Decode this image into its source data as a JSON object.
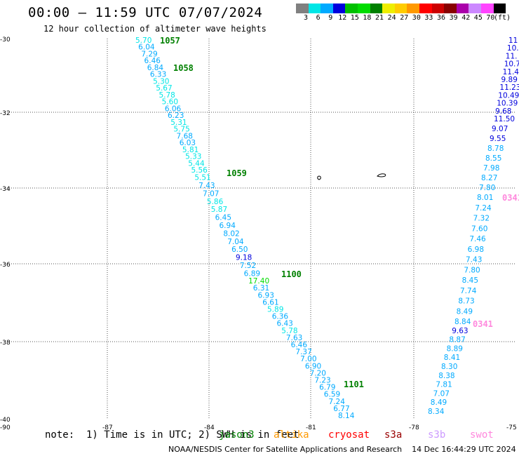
{
  "title": "00:00 – 11:59 UTC 07/07/2024",
  "subtitle": "12 hour collection of altimeter wave heights",
  "note": "note:  1) Time is in UTC; 2) SWH is in feet",
  "credit": "NOAA/NESDIS Center for Satellite Applications and Research    14 Dec 16:44:29 UTC 2024",
  "legend": {
    "unit": "(ft)",
    "bins": [
      {
        "label": "3",
        "color": "#808080"
      },
      {
        "label": "6",
        "color": "#00e6e6"
      },
      {
        "label": "9",
        "color": "#00aaff"
      },
      {
        "label": "12",
        "color": "#0000dd"
      },
      {
        "label": "15",
        "color": "#00c000"
      },
      {
        "label": "18",
        "color": "#00dc00"
      },
      {
        "label": "21",
        "color": "#008000"
      },
      {
        "label": "24",
        "color": "#eeee00"
      },
      {
        "label": "27",
        "color": "#ffcc00"
      },
      {
        "label": "30",
        "color": "#ff9900"
      },
      {
        "label": "33",
        "color": "#ff0000"
      },
      {
        "label": "36",
        "color": "#cc0000"
      },
      {
        "label": "39",
        "color": "#880000"
      },
      {
        "label": "42",
        "color": "#aa00aa"
      },
      {
        "label": "45",
        "color": "#cc88ff"
      },
      {
        "label": "70",
        "color": "#ff44ff"
      },
      {
        "label": "",
        "color": "#000000"
      }
    ]
  },
  "missions": [
    {
      "name": "jason3",
      "color": "#008000",
      "label": "jason3"
    },
    {
      "name": "altika",
      "color": "#ff9900",
      "label": "altika"
    },
    {
      "name": "cryosat",
      "color": "#ff0000",
      "label": "cryosat"
    },
    {
      "name": "s3a",
      "color": "#990000",
      "label": "s3a"
    },
    {
      "name": "s3b",
      "color": "#cc99ff",
      "label": "s3b"
    },
    {
      "name": "swot",
      "color": "#ff88dd",
      "label": "swot"
    }
  ],
  "axes": {
    "lat_ticks": [
      "-30",
      "-32",
      "-34",
      "-36",
      "-38",
      "-40"
    ],
    "lon_ticks": [
      "-90",
      "-87",
      "-84",
      "-81",
      "-78",
      "-75"
    ],
    "lat_range": [
      -40,
      -30
    ],
    "lon_range": [
      -90,
      -75
    ]
  },
  "tracks": [
    {
      "id": "jason3-west",
      "times": [
        "1057",
        "1058",
        "1059",
        "1100",
        "1101"
      ],
      "values": [
        "5.70",
        "6.04",
        "7.29",
        "6.46",
        "6.84",
        "6.33",
        "5.30",
        "5.67",
        "5.78",
        "5.60",
        "6.06",
        "6.23",
        "5.31",
        "5.75",
        "7.68",
        "6.03",
        "5.81",
        "5.33",
        "5.44",
        "5.56",
        "5.51",
        "7.43",
        "7.07",
        "5.86",
        "5.87",
        "6.45",
        "6.94",
        "8.02",
        "7.04",
        "6.50",
        "9.18",
        "7.52",
        "6.89",
        "17.40",
        "6.31",
        "6.93",
        "6.61",
        "5.89",
        "6.36",
        "6.43",
        "5.78",
        "7.63",
        "6.46",
        "7.37",
        "7.00",
        "6.90",
        "7.20",
        "7.23",
        "6.79",
        "6.59",
        "7.24",
        "6.77",
        "8.14"
      ]
    },
    {
      "id": "swot-east",
      "times": [
        "0341",
        "0341"
      ],
      "values": [
        "11",
        "10.",
        "11.",
        "10.7",
        "11.4",
        "9.89",
        "11.23",
        "10.49",
        "10.39",
        "9.68",
        "11.50",
        "9.07",
        "9.55",
        "8.78",
        "8.55",
        "7.98",
        "8.27",
        "7.80",
        "8.01",
        "7.24",
        "7.32",
        "7.60",
        "7.46",
        "6.98",
        "7.43",
        "7.80",
        "8.45",
        "7.74",
        "8.73",
        "8.49",
        "8.84",
        "9.63",
        "8.87",
        "8.89",
        "8.41",
        "8.30",
        "8.38",
        "7.81",
        "7.07",
        "8.49",
        "8.34"
      ]
    }
  ]
}
